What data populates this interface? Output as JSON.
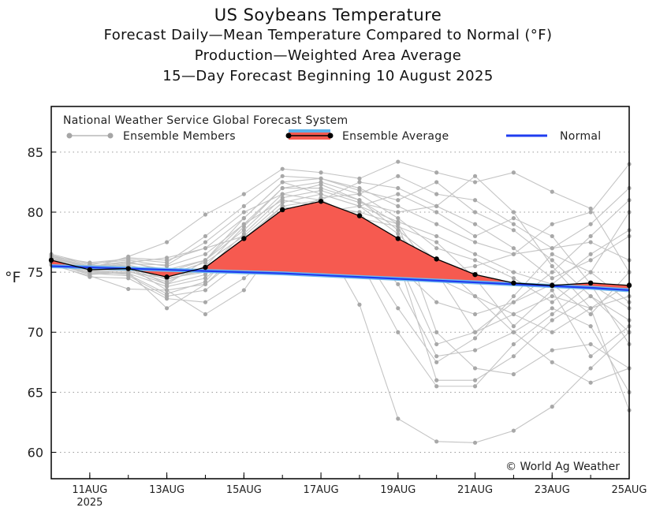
{
  "chart_data": {
    "type": "line",
    "title": "US Soybeans Temperature",
    "subtitles": [
      "Forecast Daily—Mean Temperature Compared to Normal (°F)",
      "Production—Weighted Area Average",
      "15—Day Forecast Beginning 10 August 2025"
    ],
    "ylabel": "°F",
    "ylim": [
      57.8,
      88.8
    ],
    "yticks": [
      60,
      65,
      70,
      75,
      80,
      85
    ],
    "x": [
      10,
      11,
      12,
      13,
      14,
      15,
      16,
      17,
      18,
      19,
      20,
      21,
      22,
      23,
      24,
      25
    ],
    "xlim": [
      10,
      25
    ],
    "xticks": [
      {
        "x": 11,
        "label": "11AUG",
        "sub": "2025"
      },
      {
        "x": 13,
        "label": "13AUG"
      },
      {
        "x": 15,
        "label": "15AUG"
      },
      {
        "x": 17,
        "label": "17AUG"
      },
      {
        "x": 19,
        "label": "19AUG"
      },
      {
        "x": 21,
        "label": "21AUG"
      },
      {
        "x": 23,
        "label": "23AUG"
      },
      {
        "x": 25,
        "label": "25AUG"
      }
    ],
    "legend": {
      "source": "National Weather Service Global Forecast System",
      "members": "Ensemble Members",
      "average": "Ensemble Average",
      "normal": "Normal"
    },
    "credit": "© World Ag Weather",
    "series": [
      {
        "name": "Ensemble Average",
        "values": [
          76.0,
          75.2,
          75.3,
          74.6,
          75.4,
          77.8,
          80.2,
          80.9,
          79.7,
          77.8,
          76.1,
          74.8,
          74.1,
          73.9,
          74.1,
          73.9
        ]
      },
      {
        "name": "Normal",
        "values": [
          75.5,
          75.4,
          75.3,
          75.2,
          75.1,
          75.0,
          74.9,
          74.75,
          74.6,
          74.45,
          74.3,
          74.15,
          74.0,
          73.85,
          73.7,
          73.5
        ]
      }
    ],
    "members": [
      [
        76.3,
        75.5,
        75.8,
        75.2,
        76.0,
        78.5,
        81.5,
        82.3,
        81.0,
        79.0,
        70.0,
        67.0,
        66.5,
        68.5,
        69.0,
        67.0
      ],
      [
        76.1,
        75.4,
        75.6,
        74.8,
        75.8,
        78.0,
        80.8,
        81.5,
        80.5,
        78.2,
        75.0,
        70.0,
        71.5,
        73.0,
        72.0,
        63.5
      ],
      [
        75.9,
        75.2,
        75.5,
        74.0,
        74.8,
        77.5,
        80.5,
        81.0,
        79.5,
        78.8,
        77.5,
        74.5,
        70.5,
        73.5,
        68.0,
        70.5
      ],
      [
        76.4,
        75.6,
        76.2,
        76.0,
        77.0,
        79.5,
        82.5,
        82.8,
        82.0,
        80.5,
        79.0,
        77.5,
        76.5,
        79.0,
        80.0,
        84.0
      ],
      [
        75.8,
        74.8,
        75.0,
        72.0,
        74.0,
        76.5,
        79.0,
        79.8,
        77.5,
        74.0,
        68.0,
        68.5,
        70.0,
        72.0,
        70.5,
        65.0
      ],
      [
        76.2,
        75.3,
        75.4,
        74.4,
        75.2,
        78.2,
        81.2,
        81.8,
        80.8,
        80.0,
        80.5,
        79.0,
        77.0,
        74.5,
        76.0,
        78.0
      ],
      [
        75.7,
        74.9,
        74.7,
        73.0,
        73.5,
        76.0,
        78.5,
        79.0,
        76.0,
        70.0,
        65.5,
        65.5,
        69.0,
        71.5,
        74.0,
        72.0
      ],
      [
        76.5,
        75.7,
        76.0,
        75.5,
        76.5,
        79.0,
        82.0,
        82.5,
        81.5,
        79.5,
        77.0,
        76.0,
        74.5,
        72.5,
        75.0,
        80.0
      ],
      [
        75.6,
        74.7,
        73.6,
        73.5,
        74.0,
        77.0,
        80.0,
        80.5,
        78.5,
        75.5,
        72.5,
        71.5,
        72.5,
        74.0,
        71.5,
        75.0
      ],
      [
        76.0,
        75.1,
        75.2,
        74.2,
        75.5,
        78.8,
        82.0,
        82.0,
        81.0,
        78.5,
        76.0,
        73.0,
        70.0,
        67.5,
        65.8,
        67.0
      ],
      [
        76.1,
        75.5,
        75.9,
        75.0,
        76.0,
        79.0,
        81.0,
        80.5,
        80.0,
        79.0,
        74.5,
        73.0,
        71.5,
        70.0,
        72.0,
        73.0
      ],
      [
        75.9,
        75.0,
        74.9,
        73.8,
        74.5,
        77.2,
        80.0,
        80.2,
        79.0,
        77.5,
        75.0,
        75.5,
        76.5,
        77.0,
        77.5,
        76.0
      ],
      [
        76.3,
        75.8,
        76.1,
        75.8,
        78.0,
        80.5,
        83.0,
        82.8,
        81.8,
        81.0,
        82.5,
        80.0,
        78.5,
        76.0,
        73.0,
        70.0
      ],
      [
        75.7,
        74.6,
        74.5,
        72.8,
        72.5,
        74.5,
        77.0,
        78.0,
        72.3,
        62.8,
        60.9,
        60.8,
        61.8,
        63.8,
        67.0,
        70.0
      ],
      [
        76.2,
        75.4,
        75.7,
        75.6,
        77.5,
        80.0,
        81.5,
        81.0,
        79.5,
        76.0,
        69.0,
        70.0,
        72.5,
        75.0,
        78.0,
        81.0
      ],
      [
        75.8,
        75.0,
        75.1,
        74.0,
        76.0,
        79.5,
        82.5,
        81.5,
        80.5,
        79.2,
        78.0,
        76.5,
        75.0,
        74.0,
        76.5,
        78.5
      ],
      [
        76.4,
        75.6,
        75.5,
        73.5,
        71.5,
        73.5,
        78.0,
        80.0,
        80.0,
        76.0,
        66.0,
        66.0,
        68.0,
        71.0,
        73.0,
        71.0
      ],
      [
        76.0,
        75.3,
        76.3,
        77.5,
        79.8,
        81.5,
        83.6,
        83.3,
        82.8,
        84.2,
        83.3,
        82.5,
        83.3,
        81.7,
        80.3,
        75.0
      ],
      [
        75.9,
        75.2,
        75.3,
        74.9,
        75.0,
        76.0,
        79.5,
        81.2,
        81.5,
        83.0,
        81.5,
        81.0,
        79.0,
        77.0,
        79.0,
        82.0
      ],
      [
        76.1,
        75.1,
        74.8,
        73.2,
        74.2,
        77.8,
        80.5,
        79.5,
        77.0,
        72.0,
        67.5,
        69.5,
        73.0,
        76.5,
        75.0,
        72.5
      ],
      [
        76.2,
        75.5,
        75.8,
        76.2,
        77.0,
        78.0,
        79.0,
        80.0,
        80.5,
        81.5,
        80.0,
        78.0,
        79.5,
        78.0,
        74.0,
        69.0
      ],
      [
        75.8,
        74.9,
        75.0,
        74.5,
        75.0,
        76.8,
        79.2,
        81.0,
        82.5,
        82.0,
        80.5,
        83.0,
        80.0,
        75.5,
        72.0,
        74.0
      ]
    ]
  }
}
